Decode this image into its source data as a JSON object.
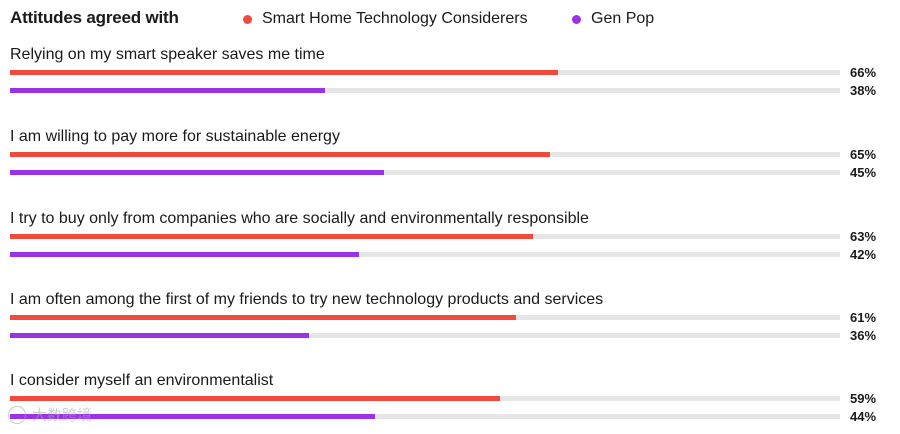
{
  "header": {
    "title": "Attitudes agreed with"
  },
  "colors": {
    "series_a": "#f04a3c",
    "series_b": "#9a33e6",
    "track": "#e6e6e6"
  },
  "watermark": {
    "text": "大数跨境"
  },
  "chart_data": {
    "type": "bar",
    "orientation": "horizontal",
    "title": "Attitudes agreed with",
    "categories": [
      "Relying on my smart speaker saves me time",
      "I am willing to pay more for sustainable energy",
      "I try to buy only from companies who are socially and environmentally responsible",
      "I am often among the first of my friends to try new technology products and services",
      "I consider myself an environmentalist"
    ],
    "series": [
      {
        "name": "Smart Home Technology Considerers",
        "color": "#f04a3c",
        "values": [
          66,
          65,
          63,
          61,
          59
        ],
        "labels": [
          "66%",
          "65%",
          "63%",
          "61%",
          "59%"
        ]
      },
      {
        "name": "Gen Pop",
        "color": "#9a33e6",
        "values": [
          38,
          45,
          42,
          36,
          44
        ],
        "labels": [
          "38%",
          "45%",
          "42%",
          "36%",
          "44%"
        ]
      }
    ],
    "xlim": [
      0,
      100
    ],
    "unit": "%",
    "legend": "top",
    "grid": false
  }
}
